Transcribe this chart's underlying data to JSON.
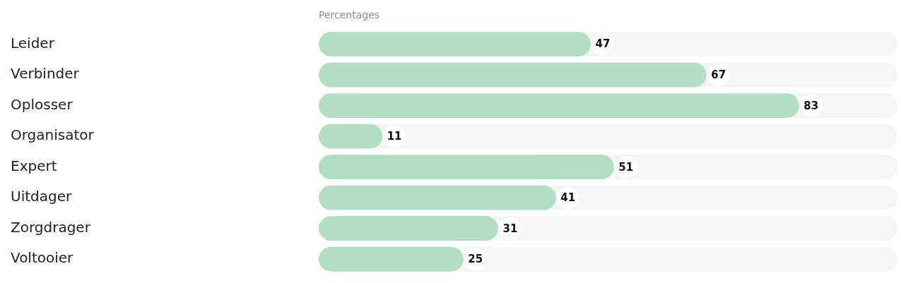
{
  "chart_data": {
    "type": "bar",
    "orientation": "horizontal",
    "xlabel": "Percentages",
    "categories": [
      "Leider",
      "Verbinder",
      "Oplosser",
      "Organisator",
      "Expert",
      "Uitdager",
      "Zorgdrager",
      "Voltooier"
    ],
    "values": [
      47,
      67,
      83,
      11,
      51,
      41,
      31,
      25
    ],
    "color": "#b2dfc4",
    "xlim": [
      0,
      100
    ],
    "data_labels": true,
    "grid": false,
    "legend": false,
    "tick_labels": "y"
  }
}
